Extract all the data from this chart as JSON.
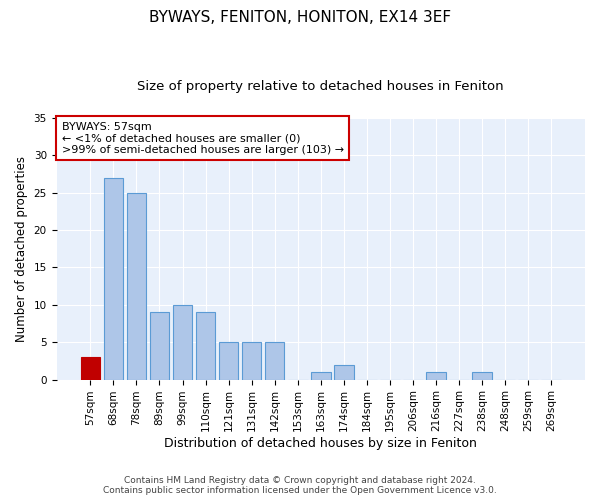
{
  "title": "BYWAYS, FENITON, HONITON, EX14 3EF",
  "subtitle": "Size of property relative to detached houses in Feniton",
  "xlabel": "Distribution of detached houses by size in Feniton",
  "ylabel": "Number of detached properties",
  "categories": [
    "57sqm",
    "68sqm",
    "78sqm",
    "89sqm",
    "99sqm",
    "110sqm",
    "121sqm",
    "131sqm",
    "142sqm",
    "153sqm",
    "163sqm",
    "174sqm",
    "184sqm",
    "195sqm",
    "206sqm",
    "216sqm",
    "227sqm",
    "238sqm",
    "248sqm",
    "259sqm",
    "269sqm"
  ],
  "values": [
    3,
    27,
    25,
    9,
    10,
    9,
    5,
    5,
    5,
    0,
    1,
    2,
    0,
    0,
    0,
    1,
    0,
    1,
    0,
    0,
    0
  ],
  "highlight_index": 0,
  "bar_color": "#aec6e8",
  "highlight_color": "#c00000",
  "bar_edgecolor": "#5b9bd5",
  "highlight_edgecolor": "#c00000",
  "ylim": [
    0,
    35
  ],
  "yticks": [
    0,
    5,
    10,
    15,
    20,
    25,
    30,
    35
  ],
  "annotation_box_text": "BYWAYS: 57sqm\n← <1% of detached houses are smaller (0)\n>99% of semi-detached houses are larger (103) →",
  "footer_line1": "Contains HM Land Registry data © Crown copyright and database right 2024.",
  "footer_line2": "Contains public sector information licensed under the Open Government Licence v3.0.",
  "background_color": "#e8f0fb",
  "grid_color": "#ffffff",
  "title_fontsize": 11,
  "subtitle_fontsize": 9.5,
  "tick_fontsize": 7.5,
  "ylabel_fontsize": 8.5,
  "xlabel_fontsize": 9
}
